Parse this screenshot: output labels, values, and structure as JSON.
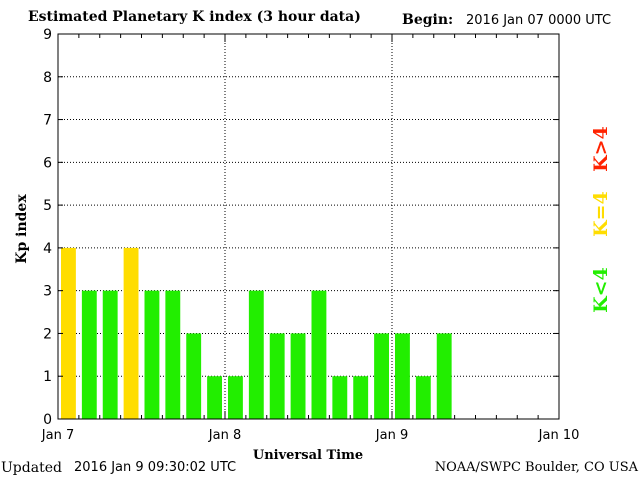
{
  "header": {
    "title": "Estimated Planetary K index (3 hour data)",
    "begin_label": "Begin:",
    "begin_value": "2016 Jan 07 0000 UTC"
  },
  "footer": {
    "updated_label": "Updated",
    "updated_value": "2016 Jan  9 09:30:02 UTC",
    "credit": "NOAA/SWPC Boulder, CO USA"
  },
  "legend": {
    "low": "K<4",
    "mid": "K=4",
    "high": "K>4"
  },
  "chart_data": {
    "type": "bar",
    "title": "Estimated Planetary K index (3 hour data)",
    "xlabel": "Universal Time",
    "ylabel": "Kp index",
    "ylim": [
      0,
      9
    ],
    "yticks": [
      "0",
      "1",
      "2",
      "3",
      "4",
      "5",
      "6",
      "7",
      "8",
      "9"
    ],
    "xticks": [
      "Jan 7",
      "Jan 8",
      "Jan 9",
      "Jan 10"
    ],
    "grid": true,
    "colors": {
      "low": "#22ee00",
      "mid": "#ffdd00",
      "high": "#ff2200"
    },
    "categories": [
      "Jan 7 00-03",
      "Jan 7 03-06",
      "Jan 7 06-09",
      "Jan 7 09-12",
      "Jan 7 12-15",
      "Jan 7 15-18",
      "Jan 7 18-21",
      "Jan 7 21-24",
      "Jan 8 00-03",
      "Jan 8 03-06",
      "Jan 8 06-09",
      "Jan 8 09-12",
      "Jan 8 12-15",
      "Jan 8 15-18",
      "Jan 8 18-21",
      "Jan 8 21-24",
      "Jan 9 00-03",
      "Jan 9 03-06",
      "Jan 9 06-09"
    ],
    "values": [
      4,
      3,
      3,
      4,
      3,
      3,
      2,
      1,
      1,
      3,
      2,
      2,
      3,
      1,
      1,
      2,
      2,
      1,
      2
    ]
  }
}
